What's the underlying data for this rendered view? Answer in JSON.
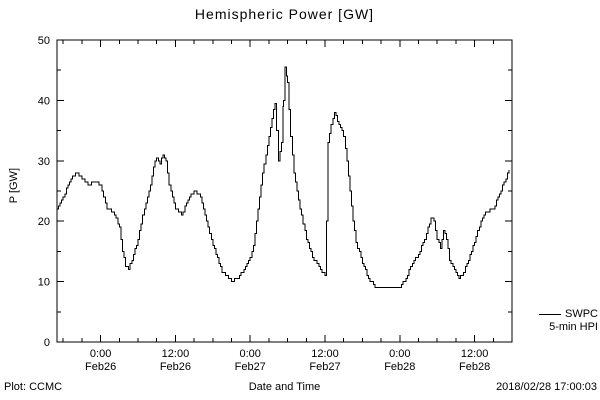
{
  "title": "Hemispheric Power [GW]",
  "footer": {
    "plot_credit": "Plot: CCMC",
    "timestamp": "2018/02/28 17:00:03"
  },
  "legend": {
    "line1": "SWPC",
    "line2": "5-min HPI"
  },
  "chart_data": {
    "type": "line",
    "title": "Hemispheric Power [GW]",
    "xlabel": "Date and Time",
    "ylabel": "P [GW]",
    "ylim": [
      0,
      50
    ],
    "yticks": [
      0,
      10,
      20,
      30,
      40,
      50
    ],
    "y_minor_step": 5,
    "grid": false,
    "line_color": "#000000",
    "legend_position": "right-outside",
    "xlim_hours": [
      0,
      73
    ],
    "x_minor_step_hours": 3,
    "xticks": [
      {
        "t": 7,
        "time": "0:00",
        "date": "Feb26"
      },
      {
        "t": 19,
        "time": "12:00",
        "date": "Feb26"
      },
      {
        "t": 31,
        "time": "0:00",
        "date": "Feb27"
      },
      {
        "t": 43,
        "time": "12:00",
        "date": "Feb27"
      },
      {
        "t": 55,
        "time": "0:00",
        "date": "Feb28"
      },
      {
        "t": 67,
        "time": "12:00",
        "date": "Feb28"
      }
    ],
    "series": [
      {
        "name": "SWPC 5-min HPI",
        "x_hours": [
          0,
          1,
          2,
          3,
          4,
          5,
          6,
          7,
          7.5,
          8,
          9,
          10,
          10.5,
          11,
          11.5,
          12,
          13,
          14,
          15,
          15.5,
          16,
          16.5,
          17,
          17.5,
          18,
          19,
          20,
          21,
          22,
          23,
          24,
          25,
          26,
          26.5,
          27,
          28,
          29,
          30,
          31,
          31.5,
          32,
          32.5,
          33,
          33.5,
          34,
          34.5,
          35,
          35.5,
          36,
          36.3,
          36.6,
          37,
          37.5,
          38,
          39,
          40,
          41,
          42,
          42.5,
          43,
          43.2,
          43.5,
          44,
          44.5,
          45,
          45.5,
          46,
          46.5,
          47,
          47.5,
          48,
          49,
          50,
          51,
          52,
          53,
          54,
          55,
          56,
          57,
          58,
          59,
          60,
          60.5,
          61,
          61.5,
          62,
          62.5,
          63,
          64,
          64.5,
          65,
          66,
          67,
          68,
          68.5,
          69,
          70,
          71,
          72,
          72.5
        ],
        "values": [
          22,
          24,
          26.5,
          28,
          27,
          26,
          26.5,
          26,
          24,
          22,
          21.5,
          19,
          15,
          12.5,
          12,
          13.5,
          17,
          22,
          26,
          29,
          30.5,
          29.5,
          31,
          30,
          26,
          22,
          21,
          23.5,
          25,
          24,
          20,
          16,
          13,
          11.5,
          11,
          10,
          10.5,
          12,
          14,
          16,
          20,
          24,
          28,
          31,
          34,
          37,
          39.5,
          30,
          33,
          40,
          45.5,
          43,
          34,
          28,
          22,
          17,
          14,
          12.5,
          11.5,
          11,
          20,
          33,
          36,
          38,
          36.5,
          35.5,
          34,
          30,
          25,
          20,
          16.5,
          13,
          10.5,
          9,
          8.8,
          8.8,
          8.8,
          9,
          10.5,
          13,
          14.5,
          17,
          20.5,
          20,
          17,
          15.5,
          18.5,
          17,
          13.5,
          11.5,
          10.5,
          11,
          13.5,
          16.5,
          20,
          21,
          21.5,
          22,
          24.5,
          27,
          28.5
        ]
      }
    ]
  }
}
